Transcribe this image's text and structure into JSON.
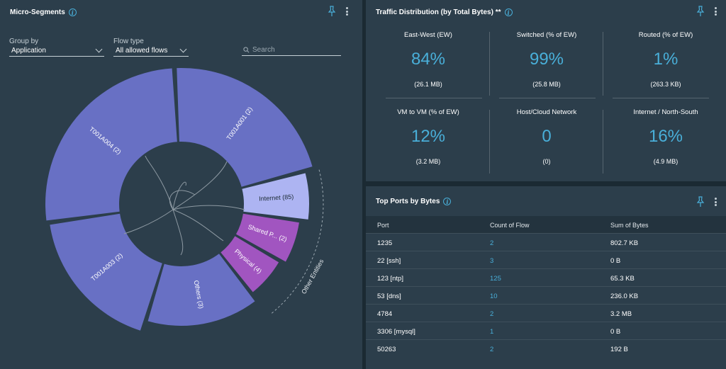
{
  "micro": {
    "title": "Micro-Segments",
    "group_by_label": "Group by",
    "group_by_value": "Application",
    "flow_type_label": "Flow type",
    "flow_type_value": "All allowed flows",
    "search_placeholder": "Search",
    "chart_data": {
      "type": "sunburst",
      "segments": [
        {
          "label": "T001A004 (2)",
          "color": "#6870c4"
        },
        {
          "label": "T001A001 (2)",
          "color": "#6870c4"
        },
        {
          "label": "Internet (85)",
          "color": "#adb4f2"
        },
        {
          "label": "Shared P... (2)",
          "color": "#a155c0"
        },
        {
          "label": "Physical (4)",
          "color": "#a155c0"
        },
        {
          "label": "Others (3)",
          "color": "#6870c4"
        },
        {
          "label": "T001A003 (2)",
          "color": "#6870c4"
        }
      ],
      "group_label": "Other Entities"
    }
  },
  "traffic": {
    "title": "Traffic Distribution (by Total Bytes) **",
    "metrics": [
      {
        "label": "East-West (EW)",
        "value": "84%",
        "sub": "(26.1 MB)"
      },
      {
        "label": "Switched (% of EW)",
        "value": "99%",
        "sub": "(25.8 MB)"
      },
      {
        "label": "Routed (% of EW)",
        "value": "1%",
        "sub": "(263.3 KB)"
      },
      {
        "label": "VM to VM (% of EW)",
        "value": "12%",
        "sub": "(3.2 MB)"
      },
      {
        "label": "Host/Cloud Network",
        "value": "0",
        "sub": "(0)"
      },
      {
        "label": "Internet / North-South",
        "value": "16%",
        "sub": "(4.9 MB)"
      }
    ]
  },
  "ports": {
    "title": "Top Ports by Bytes",
    "columns": [
      "Port",
      "Count of Flow",
      "Sum of Bytes"
    ],
    "rows": [
      {
        "port": "1235",
        "count": "2",
        "bytes": "802.7 KB"
      },
      {
        "port": "22 [ssh]",
        "count": "3",
        "bytes": "0 B"
      },
      {
        "port": "123 [ntp]",
        "count": "125",
        "bytes": "65.3 KB"
      },
      {
        "port": "53 [dns]",
        "count": "10",
        "bytes": "236.0 KB"
      },
      {
        "port": "4784",
        "count": "2",
        "bytes": "3.2 MB"
      },
      {
        "port": "3306 [mysql]",
        "count": "1",
        "bytes": "0 B"
      },
      {
        "port": "50263",
        "count": "2",
        "bytes": "192 B"
      }
    ]
  },
  "colors": {
    "accent": "#49afd9",
    "panel": "#2c3e4b",
    "background": "#1b2a33"
  }
}
